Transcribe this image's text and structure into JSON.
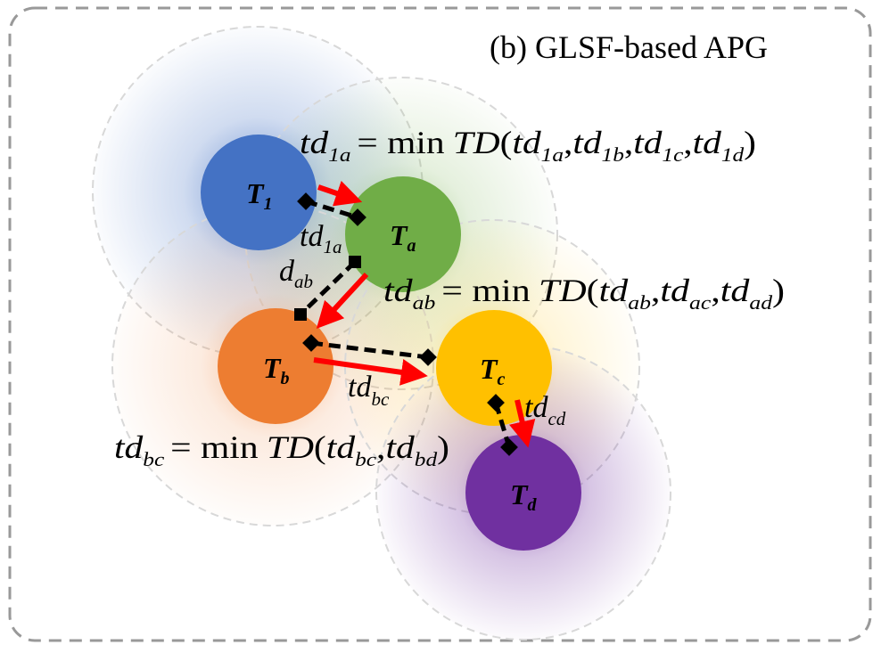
{
  "title": "(b) GLSF-based APG",
  "colors": {
    "t1": "#4472C4",
    "ta": "#70AD47",
    "tb": "#ED7D31",
    "tc": "#FFC000",
    "td": "#7030A0",
    "arrow": "#FF0000",
    "dashed_link": "#000000",
    "frame": "#999999"
  },
  "nodes": {
    "t1": {
      "label": "T",
      "sub": "1"
    },
    "ta": {
      "label": "T",
      "sub": "a"
    },
    "tb": {
      "label": "T",
      "sub": "b"
    },
    "tc": {
      "label": "T",
      "sub": "c"
    },
    "td": {
      "label": "T",
      "sub": "d"
    }
  },
  "formulas": {
    "f1": {
      "lhs": "td",
      "lhs_sub": "1a",
      "eq": "= min",
      "fn": "TD",
      "open": "(",
      "args": [
        {
          "v": "td",
          "s": "1a"
        },
        {
          "v": "td",
          "s": "1b"
        },
        {
          "v": "td",
          "s": "1c"
        },
        {
          "v": "td",
          "s": "1d"
        }
      ],
      "sep": ",",
      "close": ")"
    },
    "f2": {
      "lhs": "td",
      "lhs_sub": "ab",
      "eq": "= min",
      "fn": "TD",
      "open": "(",
      "args": [
        {
          "v": "td",
          "s": "ab"
        },
        {
          "v": "td",
          "s": "ac"
        },
        {
          "v": "td",
          "s": "ad"
        }
      ],
      "sep": ",",
      "close": ")"
    },
    "f3": {
      "lhs": "td",
      "lhs_sub": "bc",
      "eq": "= min",
      "fn": "TD",
      "open": "(",
      "args": [
        {
          "v": "td",
          "s": "bc"
        },
        {
          "v": "td",
          "s": "bd"
        }
      ],
      "sep": ",",
      "close": ")"
    }
  },
  "edge_labels": {
    "td1a": {
      "v": "td",
      "s": "1a"
    },
    "dab": {
      "v": "d",
      "s": "ab"
    },
    "tdbc": {
      "v": "td",
      "s": "bc"
    },
    "tdcd": {
      "v": "td",
      "s": "cd"
    }
  }
}
